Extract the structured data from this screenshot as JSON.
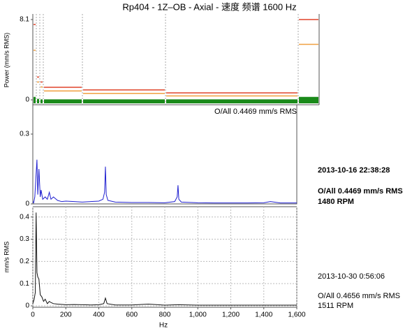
{
  "chart_data": [
    {
      "type": "trend",
      "title": "Rp404 - 1Z–OB - Axial - 速度 频谱 1600 Hz",
      "ylabel": "Power (mm/s RMS)",
      "categories": [
        null,
        null,
        null,
        null,
        null,
        null,
        null
      ],
      "ylim": [
        0,
        8.1
      ],
      "yticks": [
        0,
        8.1
      ],
      "series": [
        {
          "color": "#e0442a",
          "values": [
            7.6,
            2.3,
            1.8,
            1.27,
            1.0,
            0.7,
            8.1
          ]
        },
        {
          "color": "#f0a040",
          "values": [
            5.0,
            1.8,
            1.3,
            0.9,
            0.65,
            0.4,
            5.6
          ]
        },
        {
          "color": "#1a8a1a",
          "values": [
            0.3,
            0.1,
            0.05,
            0.05,
            0.05,
            0.05,
            0.3
          ]
        }
      ]
    },
    {
      "type": "line",
      "header": "O/All 0.4469 mm/s RMS",
      "annotations": [
        "2013-10-16 22:38:28",
        "O/All 0.4469 mm/s RMS",
        "1480 RPM"
      ],
      "xlim": [
        0,
        1600
      ],
      "ylim": [
        0,
        0.42
      ],
      "yticks": [
        0,
        0.3
      ],
      "grid": false,
      "x": [
        0,
        5,
        12,
        25,
        30,
        37,
        45,
        50,
        60,
        75,
        88,
        100,
        110,
        125,
        150,
        175,
        200,
        250,
        300,
        350,
        400,
        425,
        435,
        440,
        445,
        455,
        500,
        600,
        700,
        800,
        860,
        875,
        880,
        885,
        900,
        1000,
        1100,
        1200,
        1300,
        1400,
        1440,
        1500,
        1600
      ],
      "series": [
        {
          "color": "#1f1fd0",
          "values": [
            0.01,
            0.005,
            0.03,
            0.19,
            0.04,
            0.15,
            0.03,
            0.06,
            0.02,
            0.03,
            0.02,
            0.05,
            0.02,
            0.03,
            0.015,
            0.01,
            0.012,
            0.01,
            0.008,
            0.01,
            0.012,
            0.02,
            0.05,
            0.16,
            0.04,
            0.015,
            0.008,
            0.006,
            0.006,
            0.005,
            0.01,
            0.03,
            0.08,
            0.02,
            0.008,
            0.005,
            0.004,
            0.004,
            0.004,
            0.005,
            0.01,
            0.004,
            0.004
          ]
        }
      ]
    },
    {
      "type": "line",
      "ylabel": "mm/s RMS",
      "xlabel": "Hz",
      "annotations": [
        "2013-10-30 0:56:06",
        "O/All 0.4656 mm/s RMS",
        "1511 RPM"
      ],
      "xlim": [
        0,
        1600
      ],
      "ylim": [
        0,
        0.44
      ],
      "yticks": [
        0,
        0.1,
        0.2,
        0.3,
        0.4
      ],
      "grid": true,
      "xticks": [
        0,
        200,
        400,
        600,
        800,
        {
          "value": 1000,
          "label": "1,000"
        },
        {
          "value": 1200,
          "label": "1,200"
        },
        {
          "value": 1400,
          "label": "1,400"
        },
        {
          "value": 1600,
          "label": "1,600"
        }
      ],
      "x": [
        0,
        8,
        15,
        20,
        25,
        30,
        37,
        45,
        55,
        65,
        75,
        88,
        100,
        110,
        125,
        150,
        200,
        250,
        300,
        350,
        400,
        430,
        440,
        450,
        500,
        600,
        700,
        800,
        880,
        1000,
        1200,
        1400,
        1600
      ],
      "series": [
        {
          "color": "#111111",
          "values": [
            0.01,
            0.03,
            0.06,
            0.42,
            0.15,
            0.13,
            0.12,
            0.05,
            0.04,
            0.02,
            0.03,
            0.01,
            0.02,
            0.015,
            0.01,
            0.008,
            0.005,
            0.006,
            0.005,
            0.004,
            0.005,
            0.01,
            0.035,
            0.01,
            0.004,
            0.004,
            0.008,
            0.003,
            0.005,
            0.003,
            0.003,
            0.003,
            0.003
          ]
        }
      ]
    }
  ]
}
